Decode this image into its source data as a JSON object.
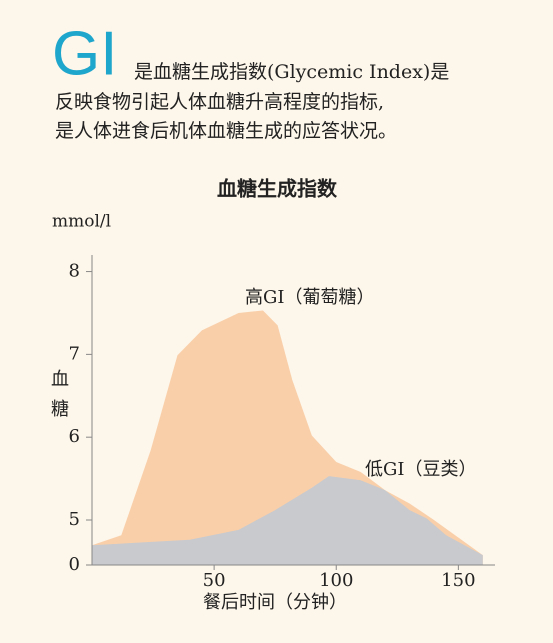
{
  "intro": {
    "logo": "GI",
    "lines": [
      "是血糖生成指数(Glycemic Index)是",
      "反映食物引起人体血糖升高程度的指标,",
      "是人体进食后机体血糖生成的应答状况。"
    ]
  },
  "chart_data": {
    "type": "area",
    "title": "血糖生成指数",
    "y_unit": "mmol/l",
    "y_label": [
      "血",
      "糖"
    ],
    "x_label": "餐后时间（分钟）",
    "xlim": [
      0,
      165
    ],
    "xticks": [
      50,
      100,
      150
    ],
    "ylim": [
      0,
      8.2
    ],
    "yticks": [
      0,
      5,
      6,
      7,
      8
    ],
    "axis_break": 5,
    "series": [
      {
        "name": "高GI（葡萄糖）",
        "color": "#f9cfa9",
        "x": [
          0,
          12,
          24,
          35,
          45,
          60,
          70,
          76,
          82,
          90,
          100,
          110,
          120,
          130,
          140,
          160
        ],
        "values": [
          2.2,
          3.3,
          5.84,
          6.99,
          7.29,
          7.5,
          7.53,
          7.35,
          6.69,
          6.02,
          5.7,
          5.58,
          5.36,
          5.2,
          5,
          1.1
        ]
      },
      {
        "name": "低GI（豆类）",
        "color": "#c8cace",
        "x": [
          0,
          40,
          60,
          75,
          90,
          97,
          110,
          120,
          130,
          137,
          145,
          160
        ],
        "values": [
          2.2,
          2.8,
          3.9,
          5.12,
          5.39,
          5.53,
          5.48,
          5.36,
          5.12,
          5.02,
          3.3,
          1.1
        ]
      }
    ]
  }
}
